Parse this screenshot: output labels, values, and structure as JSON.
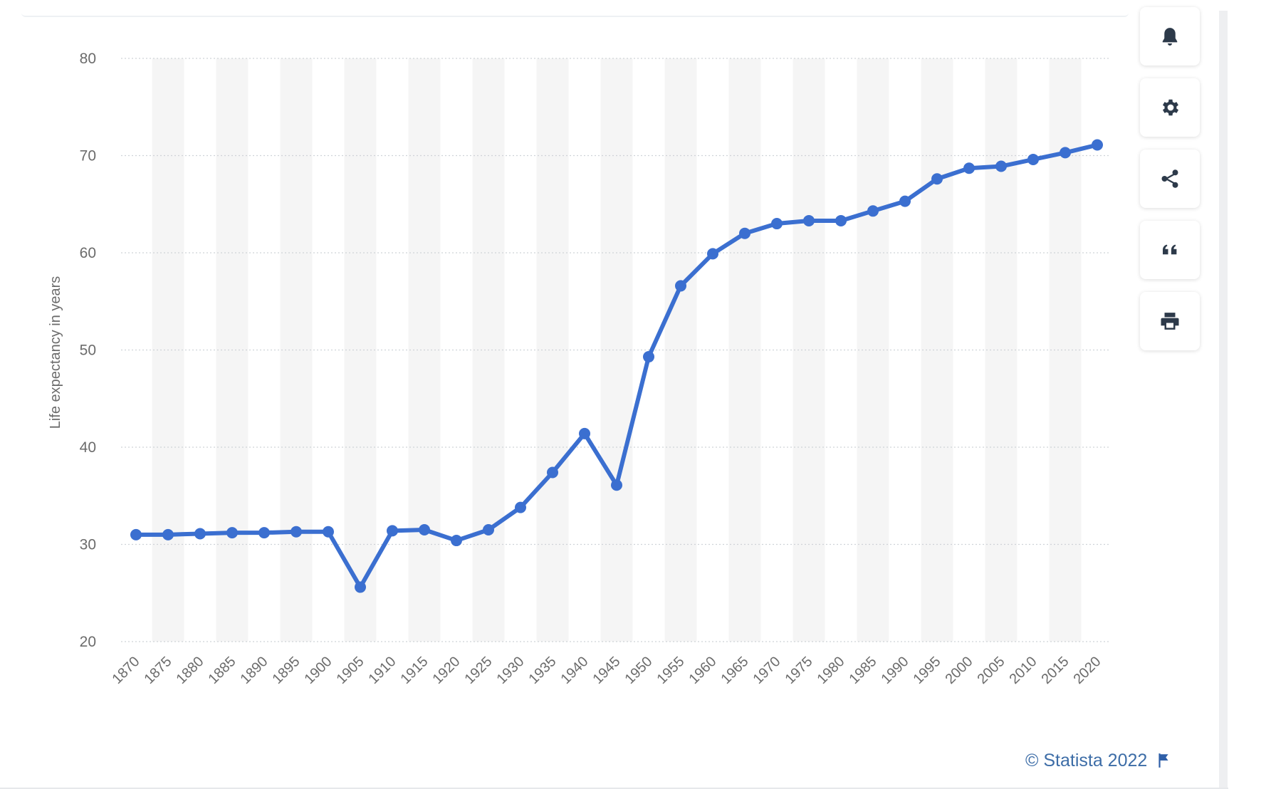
{
  "chart_data": {
    "type": "line",
    "title": "",
    "xlabel": "",
    "ylabel": "Life expectancy in years",
    "ylim": [
      20,
      80
    ],
    "yticks": [
      20,
      30,
      40,
      50,
      60,
      70,
      80
    ],
    "grid": true,
    "categories": [
      "1870",
      "1875",
      "1880",
      "1885",
      "1890",
      "1895",
      "1900",
      "1905",
      "1910",
      "1915",
      "1920",
      "1925",
      "1930",
      "1935",
      "1940",
      "1945",
      "1950",
      "1955",
      "1960",
      "1965",
      "1970",
      "1975",
      "1980",
      "1985",
      "1990",
      "1995",
      "2000",
      "2005",
      "2010",
      "2015",
      "2020"
    ],
    "series": [
      {
        "values": [
          31.0,
          31.0,
          31.1,
          31.2,
          31.2,
          31.3,
          31.3,
          25.6,
          31.4,
          31.5,
          30.4,
          31.5,
          33.8,
          37.4,
          41.4,
          36.1,
          49.3,
          56.6,
          59.9,
          62.0,
          63.0,
          63.3,
          63.3,
          64.3,
          65.3,
          67.6,
          68.7,
          68.9,
          69.6,
          70.3,
          71.1
        ],
        "color": "#3b6fd0"
      }
    ]
  },
  "toolbar": {
    "items": [
      {
        "icon": "bell-icon"
      },
      {
        "icon": "gear-icon"
      },
      {
        "icon": "share-icon"
      },
      {
        "icon": "quote-icon"
      },
      {
        "icon": "print-icon"
      }
    ]
  },
  "footer": {
    "credit": "© Statista 2022",
    "flag_icon": "flag-icon"
  },
  "colors": {
    "line": "#3b6fd0",
    "band": "#f5f5f5",
    "grid": "#cfd3d8",
    "axis_text": "#6b6b6b",
    "credit": "#3d6da7"
  }
}
